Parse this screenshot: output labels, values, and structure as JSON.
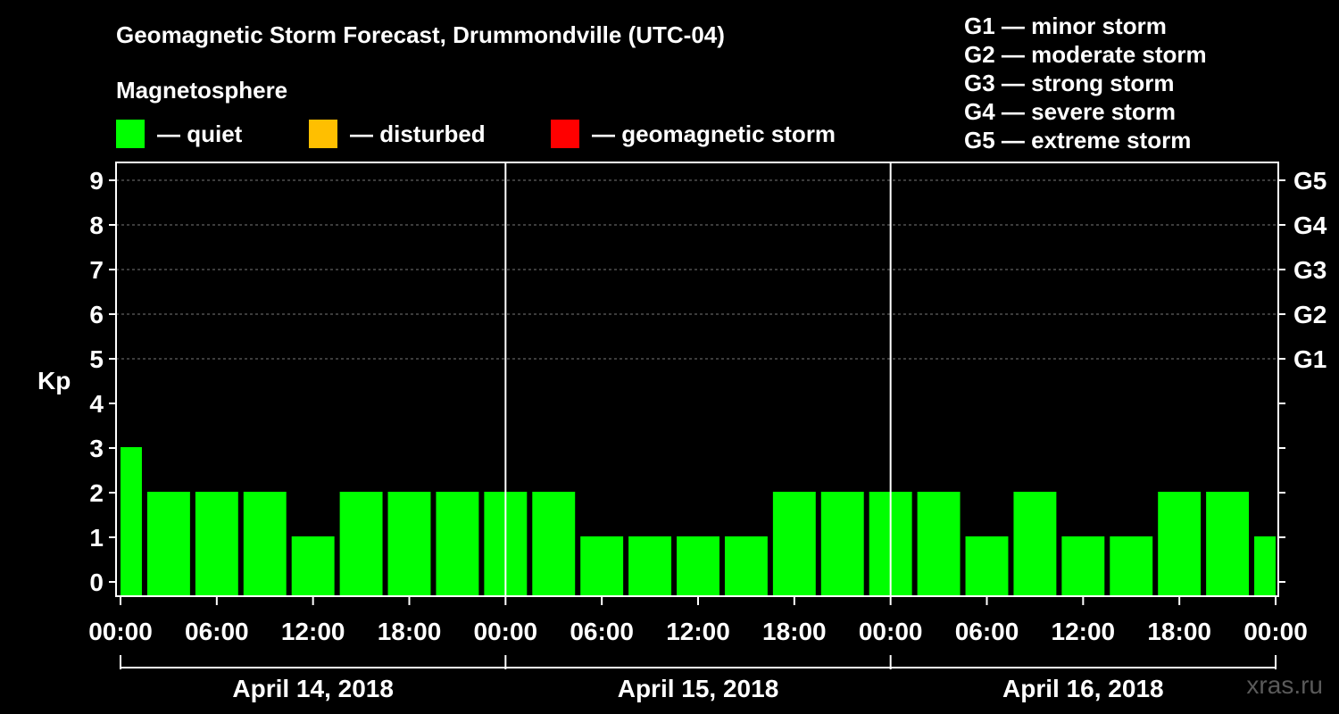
{
  "title": "Geomagnetic Storm Forecast, Drummondville (UTC-04)",
  "magnetosphere_heading": "Magnetosphere",
  "legend": [
    {
      "label": "— quiet",
      "color": "#00ff00"
    },
    {
      "label": "— disturbed",
      "color": "#ffbf00"
    },
    {
      "label": "— geomagnetic storm",
      "color": "#ff0000"
    }
  ],
  "g_scale": [
    "G1 — minor storm",
    "G2 — moderate storm",
    "G3 — strong storm",
    "G4 — severe storm",
    "G5 — extreme storm"
  ],
  "watermark": "xras.ru",
  "chart_data": {
    "type": "bar",
    "title": "Geomagnetic Storm Forecast, Drummondville (UTC-04)",
    "ylabel": "Kp",
    "ylim": [
      0,
      9
    ],
    "y_ticks": [
      0,
      1,
      2,
      3,
      4,
      5,
      6,
      7,
      8,
      9
    ],
    "right_ticks": [
      {
        "kp": 5,
        "label": "G1"
      },
      {
        "kp": 6,
        "label": "G2"
      },
      {
        "kp": 7,
        "label": "G3"
      },
      {
        "kp": 8,
        "label": "G4"
      },
      {
        "kp": 9,
        "label": "G5"
      }
    ],
    "x_tick_labels": [
      "00:00",
      "06:00",
      "12:00",
      "18:00",
      "00:00",
      "06:00",
      "12:00",
      "18:00",
      "00:00",
      "06:00",
      "12:00",
      "18:00",
      "00:00"
    ],
    "days": [
      "April 14, 2018",
      "April 15, 2018",
      "April 16, 2018"
    ],
    "hours_total": 72,
    "bar_color": "#00ff00",
    "bars": [
      {
        "start_hour": 0,
        "end_hour": 1.5,
        "kp": 3
      },
      {
        "start_hour": 1.5,
        "end_hour": 4.5,
        "kp": 2
      },
      {
        "start_hour": 4.5,
        "end_hour": 7.5,
        "kp": 2
      },
      {
        "start_hour": 7.5,
        "end_hour": 10.5,
        "kp": 2
      },
      {
        "start_hour": 10.5,
        "end_hour": 13.5,
        "kp": 1
      },
      {
        "start_hour": 13.5,
        "end_hour": 16.5,
        "kp": 2
      },
      {
        "start_hour": 16.5,
        "end_hour": 19.5,
        "kp": 2
      },
      {
        "start_hour": 19.5,
        "end_hour": 22.5,
        "kp": 2
      },
      {
        "start_hour": 22.5,
        "end_hour": 25.5,
        "kp": 2
      },
      {
        "start_hour": 25.5,
        "end_hour": 28.5,
        "kp": 2
      },
      {
        "start_hour": 28.5,
        "end_hour": 31.5,
        "kp": 1
      },
      {
        "start_hour": 31.5,
        "end_hour": 34.5,
        "kp": 1
      },
      {
        "start_hour": 34.5,
        "end_hour": 37.5,
        "kp": 1
      },
      {
        "start_hour": 37.5,
        "end_hour": 40.5,
        "kp": 1
      },
      {
        "start_hour": 40.5,
        "end_hour": 43.5,
        "kp": 2
      },
      {
        "start_hour": 43.5,
        "end_hour": 46.5,
        "kp": 2
      },
      {
        "start_hour": 46.5,
        "end_hour": 49.5,
        "kp": 2
      },
      {
        "start_hour": 49.5,
        "end_hour": 52.5,
        "kp": 2
      },
      {
        "start_hour": 52.5,
        "end_hour": 55.5,
        "kp": 1
      },
      {
        "start_hour": 55.5,
        "end_hour": 58.5,
        "kp": 2
      },
      {
        "start_hour": 58.5,
        "end_hour": 61.5,
        "kp": 1
      },
      {
        "start_hour": 61.5,
        "end_hour": 64.5,
        "kp": 1
      },
      {
        "start_hour": 64.5,
        "end_hour": 67.5,
        "kp": 2
      },
      {
        "start_hour": 67.5,
        "end_hour": 70.5,
        "kp": 2
      },
      {
        "start_hour": 70.5,
        "end_hour": 72,
        "kp": 1
      }
    ]
  }
}
